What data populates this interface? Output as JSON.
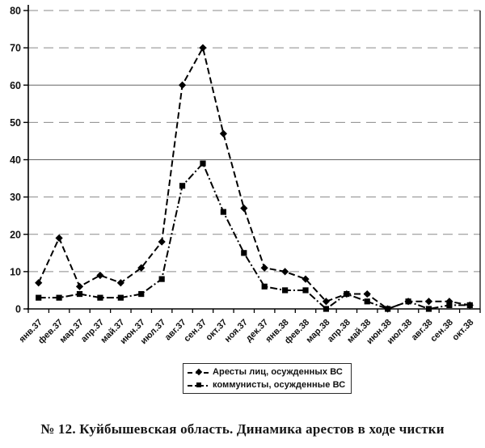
{
  "chart_data": {
    "type": "line",
    "categories": [
      "янв.37",
      "фев.37",
      "мар.37",
      "апр.37",
      "май.37",
      "июн.37",
      "июл.37",
      "авг.37",
      "сен.37",
      "окт.37",
      "ноя.37",
      "дек.37",
      "янв.38",
      "фев.38",
      "мар.38",
      "апр.38",
      "май.38",
      "июн.38",
      "июл.38",
      "авг.38",
      "сен.38",
      "окт.38"
    ],
    "series": [
      {
        "name": "Аресты лиц, осужденных ВС",
        "marker": "diamond",
        "line_style": "dashed",
        "values": [
          7,
          19,
          6,
          9,
          7,
          11,
          18,
          60,
          70,
          47,
          27,
          11,
          10,
          8,
          2,
          4,
          4,
          0,
          2,
          2,
          2,
          1
        ]
      },
      {
        "name": "коммунисты, осужденные ВС",
        "marker": "square",
        "line_style": "dash-dot",
        "values": [
          3,
          3,
          4,
          3,
          3,
          4,
          8,
          33,
          39,
          26,
          15,
          6,
          5,
          5,
          0,
          4,
          2,
          0,
          2,
          0,
          1,
          1
        ]
      }
    ],
    "title": "",
    "xlabel": "",
    "ylabel": "",
    "ylim": [
      0,
      80
    ],
    "y_ticks": [
      0,
      10,
      20,
      30,
      40,
      50,
      60,
      70,
      80
    ],
    "x_label_rotation": -45,
    "grid": "horizontal-dashed",
    "legend_position": "bottom-center",
    "colors": {
      "series": "#000000",
      "grid": "#8a8a8a",
      "background": "#ffffff"
    }
  },
  "caption": "№ 12. Куйбышевская область. Динамика арестов в ходе чистки"
}
